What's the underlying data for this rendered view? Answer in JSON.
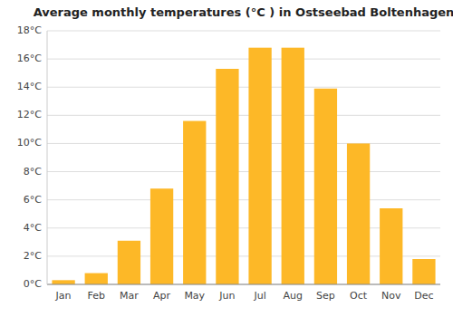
{
  "chart_data": {
    "type": "bar",
    "title": "Average monthly temperatures (°C ) in Ostseebad Boltenhagen",
    "categories": [
      "Jan",
      "Feb",
      "Mar",
      "Apr",
      "May",
      "Jun",
      "Jul",
      "Aug",
      "Sep",
      "Oct",
      "Nov",
      "Dec"
    ],
    "values": [
      0.3,
      0.8,
      3.1,
      6.8,
      11.6,
      15.3,
      16.8,
      16.8,
      13.9,
      10.0,
      5.4,
      1.8
    ],
    "color": "#FDB827",
    "ylim": [
      0,
      18
    ],
    "yticks": [
      {
        "value": 0,
        "label": "0°C"
      },
      {
        "value": 2,
        "label": "2°C"
      },
      {
        "value": 4,
        "label": "4°C"
      },
      {
        "value": 6,
        "label": "6°C"
      },
      {
        "value": 8,
        "label": "8°C"
      },
      {
        "value": 10,
        "label": "10°C"
      },
      {
        "value": 12,
        "label": "12°C"
      },
      {
        "value": 14,
        "label": "14°C"
      },
      {
        "value": 16,
        "label": "16°C"
      },
      {
        "value": 18,
        "label": "18°C"
      }
    ],
    "grid": true
  }
}
